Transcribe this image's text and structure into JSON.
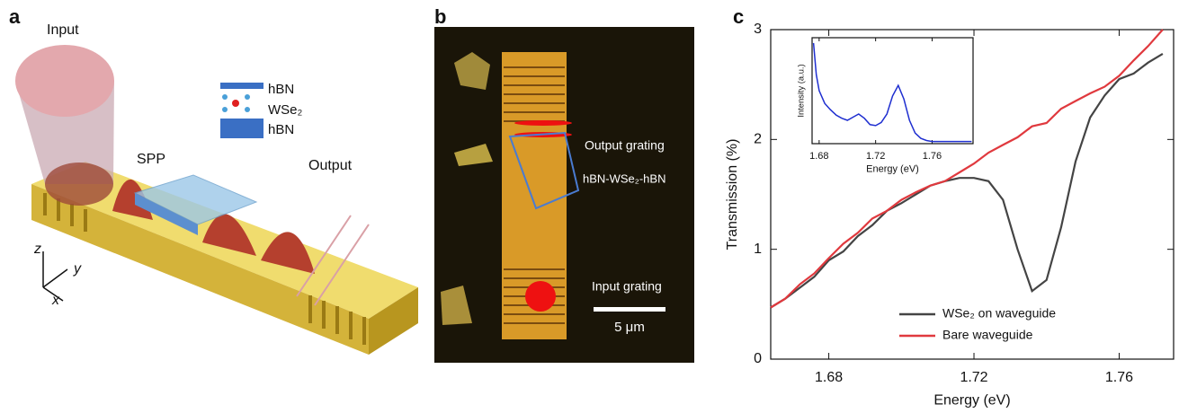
{
  "panels": {
    "a": {
      "label": "a",
      "input": "Input",
      "stack": [
        "hBN",
        "WSe₂",
        "hBN"
      ],
      "spp": "SPP",
      "output": "Output",
      "axes": [
        "z",
        "y",
        "x"
      ]
    },
    "b": {
      "label": "b",
      "output_grating": "Output grating",
      "sample": "hBN-WSe₂-hBN",
      "input_grating": "Input grating",
      "scale_bar": "5 μm"
    },
    "c": {
      "label": "c"
    }
  },
  "chart_data": [
    {
      "type": "line",
      "x_label": "Energy (eV)",
      "y_label": "Transmission (%)",
      "x": [
        1.664,
        1.668,
        1.672,
        1.676,
        1.68,
        1.684,
        1.688,
        1.692,
        1.696,
        1.7,
        1.704,
        1.708,
        1.712,
        1.716,
        1.72,
        1.724,
        1.728,
        1.732,
        1.736,
        1.74,
        1.744,
        1.748,
        1.752,
        1.756,
        1.76,
        1.764,
        1.768,
        1.772
      ],
      "series": [
        {
          "name": "WSe₂ on waveguide",
          "color": "#444444",
          "values": [
            0.47,
            0.55,
            0.65,
            0.75,
            0.9,
            0.98,
            1.12,
            1.22,
            1.35,
            1.42,
            1.5,
            1.58,
            1.62,
            1.65,
            1.65,
            1.62,
            1.45,
            1.0,
            0.62,
            0.72,
            1.2,
            1.8,
            2.2,
            2.4,
            2.55,
            2.6,
            2.7,
            2.78
          ]
        },
        {
          "name": "Bare waveguide",
          "color": "#e0393e",
          "values": [
            0.47,
            0.55,
            0.68,
            0.78,
            0.92,
            1.05,
            1.15,
            1.28,
            1.35,
            1.45,
            1.52,
            1.58,
            1.62,
            1.7,
            1.78,
            1.88,
            1.95,
            2.02,
            2.12,
            2.15,
            2.28,
            2.35,
            2.42,
            2.48,
            2.58,
            2.72,
            2.85,
            3.0
          ]
        }
      ],
      "xlim": [
        1.664,
        1.775
      ],
      "ylim": [
        0,
        3
      ],
      "xticks": [
        1.68,
        1.72,
        1.76
      ],
      "yticks": [
        0,
        1,
        2,
        3
      ]
    },
    {
      "type": "line",
      "x_label": "Energy (eV)",
      "y_label": "Intensity (a.u.)",
      "x": [
        1.676,
        1.678,
        1.68,
        1.684,
        1.688,
        1.692,
        1.696,
        1.7,
        1.704,
        1.708,
        1.712,
        1.716,
        1.72,
        1.724,
        1.728,
        1.732,
        1.736,
        1.74,
        1.744,
        1.748,
        1.752,
        1.756,
        1.76,
        1.77,
        1.78,
        1.788
      ],
      "series": [
        {
          "color": "#1f2fd0",
          "values": [
            0.95,
            0.65,
            0.5,
            0.38,
            0.32,
            0.27,
            0.24,
            0.22,
            0.25,
            0.28,
            0.24,
            0.18,
            0.17,
            0.2,
            0.28,
            0.45,
            0.55,
            0.42,
            0.22,
            0.1,
            0.05,
            0.03,
            0.02,
            0.02,
            0.02,
            0.02
          ]
        }
      ],
      "xlim": [
        1.675,
        1.789
      ],
      "ylim": [
        0,
        1
      ],
      "xticks": [
        1.68,
        1.72,
        1.76
      ]
    }
  ]
}
